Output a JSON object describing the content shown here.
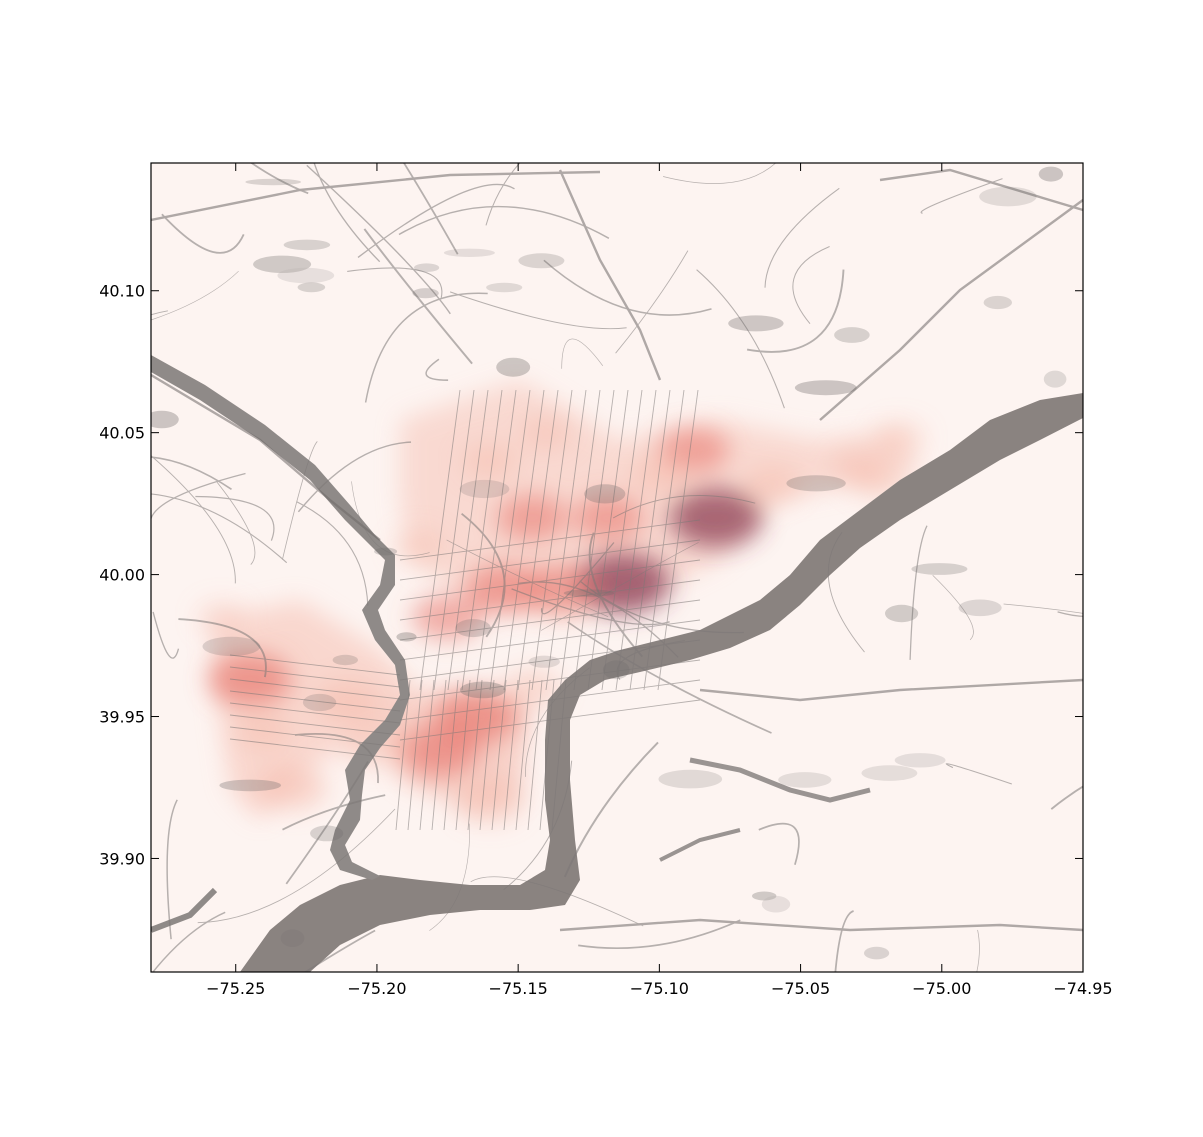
{
  "chart_data": {
    "type": "heatmap",
    "title": "",
    "xlabel": "",
    "ylabel": "",
    "xlim": [
      -75.28,
      -74.95
    ],
    "ylim": [
      39.86,
      40.145
    ],
    "x_ticks": [
      {
        "value": -75.25,
        "label": "−75.25"
      },
      {
        "value": -75.2,
        "label": "−75.20"
      },
      {
        "value": -75.15,
        "label": "−75.15"
      },
      {
        "value": -75.1,
        "label": "−75.10"
      },
      {
        "value": -75.05,
        "label": "−75.05"
      },
      {
        "value": -75.0,
        "label": "−75.00"
      },
      {
        "value": -74.95,
        "label": "−74.95"
      }
    ],
    "y_ticks": [
      {
        "value": 39.9,
        "label": "39.90"
      },
      {
        "value": 39.95,
        "label": "39.95"
      },
      {
        "value": 40.0,
        "label": "40.00"
      },
      {
        "value": 40.05,
        "label": "40.05"
      },
      {
        "value": 40.1,
        "label": "40.10"
      }
    ],
    "grid": false,
    "legend": "none",
    "colormap": [
      "#fdf3f0",
      "#f6b7a8",
      "#e7736a",
      "#8a3a52"
    ],
    "basemap": "grayscale street map (Philadelphia area)",
    "hotspots": [
      {
        "lon": -75.113,
        "lat": 39.997,
        "intensity": 1.0
      },
      {
        "lon": -75.08,
        "lat": 40.02,
        "intensity": 0.95
      },
      {
        "lon": -75.088,
        "lat": 40.044,
        "intensity": 0.6
      },
      {
        "lon": -75.245,
        "lat": 39.963,
        "intensity": 0.8
      },
      {
        "lon": -75.165,
        "lat": 39.95,
        "intensity": 0.8
      },
      {
        "lon": -75.178,
        "lat": 39.938,
        "intensity": 0.75
      },
      {
        "lon": -75.155,
        "lat": 39.995,
        "intensity": 0.7
      },
      {
        "lon": -75.135,
        "lat": 39.995,
        "intensity": 0.65
      },
      {
        "lon": -75.145,
        "lat": 40.02,
        "intensity": 0.6
      },
      {
        "lon": -75.118,
        "lat": 40.02,
        "intensity": 0.6
      },
      {
        "lon": -75.16,
        "lat": 39.92,
        "intensity": 0.5
      },
      {
        "lon": -75.23,
        "lat": 39.925,
        "intensity": 0.55
      },
      {
        "lon": -75.21,
        "lat": 39.955,
        "intensity": 0.5
      },
      {
        "lon": -75.2,
        "lat": 39.94,
        "intensity": 0.5
      },
      {
        "lon": -75.175,
        "lat": 39.985,
        "intensity": 0.6
      },
      {
        "lon": -75.16,
        "lat": 40.04,
        "intensity": 0.35
      },
      {
        "lon": -75.14,
        "lat": 40.05,
        "intensity": 0.3
      },
      {
        "lon": -75.1,
        "lat": 40.035,
        "intensity": 0.4
      },
      {
        "lon": -75.06,
        "lat": 40.032,
        "intensity": 0.35
      },
      {
        "lon": -75.03,
        "lat": 40.038,
        "intensity": 0.3
      },
      {
        "lon": -75.022,
        "lat": 40.033,
        "intensity": 0.35
      },
      {
        "lon": -75.015,
        "lat": 40.048,
        "intensity": 0.25
      },
      {
        "lon": -75.185,
        "lat": 40.01,
        "intensity": 0.25
      },
      {
        "lon": -75.145,
        "lat": 39.96,
        "intensity": 0.4
      },
      {
        "lon": -75.24,
        "lat": 39.945,
        "intensity": 0.35
      },
      {
        "lon": -75.255,
        "lat": 39.985,
        "intensity": 0.2
      }
    ]
  }
}
